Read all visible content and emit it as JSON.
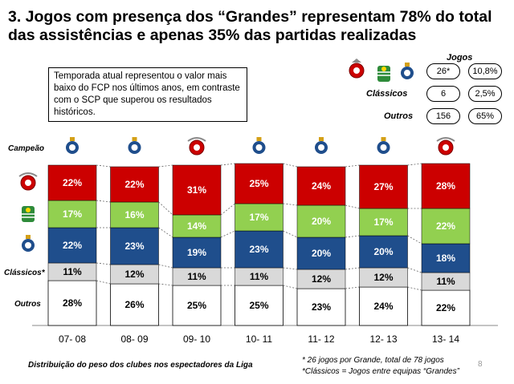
{
  "title": "3. Jogos com presença dos “Grandes” representam 78% do total das assistências e apenas 35% das partidas realizadas",
  "callout": "Temporada atual representou o valor mais baixo do FCP nos últimos anos, em contraste com o SCP que superou os resultados históricos.",
  "summary": {
    "jogos_header": "Jogos",
    "grandes": {
      "games": "26*",
      "pct": "10,8%"
    },
    "classicos": {
      "label": "Clássicos",
      "games": "6",
      "pct": "2,5%"
    },
    "outros": {
      "label": "Outros",
      "games": "156",
      "pct": "65%"
    }
  },
  "row_labels": {
    "campeao": "Campeão",
    "classicos": "Clássicos*",
    "outros": "Outros"
  },
  "colors": {
    "benfica": "#cc0000",
    "sporting": "#92d050",
    "porto": "#1f4e8c",
    "classicos": "#d9d9d9",
    "outros": "#ffffff"
  },
  "chart_data": {
    "type": "bar",
    "stacked": true,
    "categories": [
      "07- 08",
      "08- 09",
      "09- 10",
      "10- 11",
      "11- 12",
      "12- 13",
      "13- 14"
    ],
    "champions": [
      "porto-icon",
      "porto-icon",
      "benfica-icon",
      "porto-icon",
      "porto-icon",
      "porto-icon",
      "benfica-icon"
    ],
    "series": [
      {
        "key": "outros",
        "values": [
          28,
          26,
          25,
          25,
          23,
          24,
          22
        ]
      },
      {
        "key": "classicos",
        "values": [
          11,
          12,
          11,
          11,
          12,
          12,
          11
        ]
      },
      {
        "key": "porto",
        "values": [
          22,
          23,
          19,
          23,
          20,
          20,
          18
        ]
      },
      {
        "key": "sporting",
        "values": [
          17,
          16,
          14,
          17,
          20,
          17,
          22
        ]
      },
      {
        "key": "benfica",
        "values": [
          22,
          22,
          31,
          25,
          24,
          27,
          28
        ]
      }
    ],
    "value_suffix": "%"
  },
  "footnote_left": "Distribuição do peso dos clubes nos espectadores da Liga",
  "footnote_right_1": "* 26 jogos por Grande, total de 78 jogos",
  "footnote_right_2": "*Clássicos = Jogos entre equipas “Grandes”",
  "page_number": "8"
}
